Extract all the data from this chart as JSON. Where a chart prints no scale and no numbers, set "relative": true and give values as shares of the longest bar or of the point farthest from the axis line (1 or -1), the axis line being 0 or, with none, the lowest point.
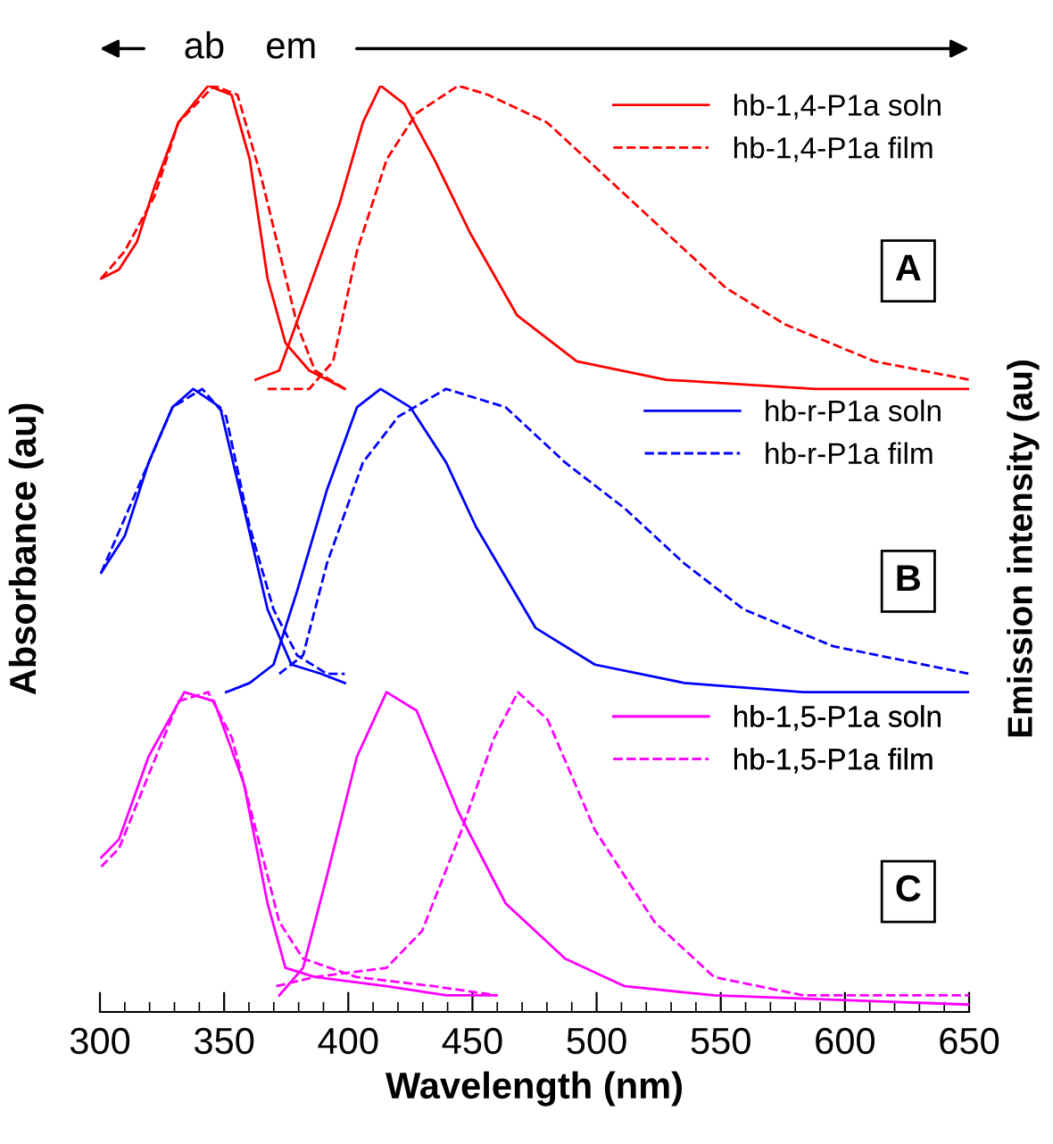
{
  "chart_data": {
    "type": "line",
    "relative": true,
    "xlim": [
      300,
      650
    ],
    "legend": "right",
    "xlabel": "Wavelength (nm)",
    "ylabel": "Absorbance (au)",
    "y2label": "Emission intensity (au)",
    "annotations": [
      "ab",
      "em",
      "A",
      "B",
      "C"
    ],
    "xticks": [
      300,
      {
        "value": 310,
        "label": null
      },
      {
        "value": 320,
        "label": null
      },
      {
        "value": 330,
        "label": null
      },
      {
        "value": 340,
        "label": null
      },
      350,
      {
        "value": 360,
        "label": null
      },
      {
        "value": 370,
        "label": null
      },
      {
        "value": 380,
        "label": null
      },
      {
        "value": 390,
        "label": null
      },
      400,
      {
        "value": 410,
        "label": null
      },
      {
        "value": 420,
        "label": null
      },
      {
        "value": 430,
        "label": null
      },
      {
        "value": 440,
        "label": null
      },
      450,
      {
        "value": 460,
        "label": null
      },
      {
        "value": 470,
        "label": null
      },
      {
        "value": 480,
        "label": null
      },
      {
        "value": 490,
        "label": null
      },
      500,
      {
        "value": 510,
        "label": null
      },
      {
        "value": 520,
        "label": null
      },
      {
        "value": 530,
        "label": null
      },
      {
        "value": 540,
        "label": null
      },
      550,
      {
        "value": 560,
        "label": null
      },
      {
        "value": 570,
        "label": null
      },
      {
        "value": 580,
        "label": null
      },
      {
        "value": 590,
        "label": null
      },
      600,
      {
        "value": 610,
        "label": null
      },
      {
        "value": 620,
        "label": null
      },
      {
        "value": 630,
        "label": null
      },
      {
        "value": 640,
        "label": null
      },
      650
    ],
    "series": [
      {
        "name": "hb-1,4-P1a soln",
        "color": "#ff0000",
        "line_style": "solid",
        "x": [
          362.7,
          372.2,
          384.3,
          396.3,
          405.9,
          413,
          422.6,
          434.6,
          449,
          468,
          492,
          528,
          588,
          650
        ],
        "values": [
          0.68,
          0.69,
          0.78,
          0.87,
          0.96,
          1.0,
          0.98,
          0.92,
          0.84,
          0.75,
          0.7,
          0.68,
          0.67,
          0.67
        ]
      },
      {
        "name": "hb-1,4-P1a film",
        "color": "#ff0000",
        "line_style": "dashed",
        "x": [
          367.5,
          384.3,
          393.9,
          403.5,
          415.5,
          427.5,
          444.3,
          456.3,
          480,
          504,
          528,
          552,
          576,
          612,
          650
        ],
        "values": [
          0.67,
          0.67,
          0.7,
          0.82,
          0.92,
          0.97,
          1.0,
          0.99,
          0.96,
          0.9,
          0.84,
          0.78,
          0.74,
          0.7,
          0.68
        ]
      },
      {
        "color": "#ff0000",
        "line_style": "solid",
        "x": [
          300.5,
          307.7,
          314.9,
          322,
          331.6,
          343.6,
          353,
          360.3,
          367.5,
          374.7,
          384.3,
          398.6
        ],
        "values": [
          0.79,
          0.8,
          0.83,
          0.89,
          0.96,
          1.0,
          0.99,
          0.92,
          0.79,
          0.72,
          0.69,
          0.67
        ]
      },
      {
        "color": "#ff0000",
        "line_style": "dashed",
        "x": [
          300.5,
          310,
          322,
          331.6,
          346,
          355.4,
          365,
          372.2,
          379.4,
          386.6,
          398.6
        ],
        "values": [
          0.79,
          0.82,
          0.88,
          0.96,
          1.0,
          0.99,
          0.9,
          0.82,
          0.74,
          0.69,
          0.67
        ]
      },
      {
        "name": "hb-r-P1a soln",
        "color": "#0000ff",
        "line_style": "solid",
        "x": [
          350.8,
          360.3,
          369.9,
          379.4,
          391.4,
          403.5,
          413,
          425,
          439.4,
          451.4,
          475.4,
          499.3,
          535.3,
          583.2,
          650
        ],
        "values": [
          0.34,
          0.35,
          0.37,
          0.45,
          0.56,
          0.65,
          0.67,
          0.65,
          0.59,
          0.52,
          0.41,
          0.37,
          0.35,
          0.34,
          0.34
        ]
      },
      {
        "name": "hb-r-P1a film",
        "color": "#0000ff",
        "line_style": "dashed",
        "x": [
          372.2,
          381.8,
          391.4,
          405.9,
          420.2,
          439.4,
          463.4,
          487.3,
          511.3,
          535.3,
          559.3,
          595.2,
          650
        ],
        "values": [
          0.36,
          0.38,
          0.48,
          0.59,
          0.64,
          0.67,
          0.65,
          0.59,
          0.54,
          0.48,
          0.43,
          0.39,
          0.36
        ]
      },
      {
        "color": "#0000ff",
        "line_style": "solid",
        "x": [
          300.5,
          310,
          319.6,
          329.2,
          337.6,
          348.4,
          358,
          367.5,
          377.1,
          389,
          398.6
        ],
        "values": [
          0.47,
          0.51,
          0.59,
          0.65,
          0.67,
          0.65,
          0.54,
          0.43,
          0.37,
          0.36,
          0.35
        ]
      },
      {
        "color": "#0000ff",
        "line_style": "dashed",
        "x": [
          300.5,
          314.9,
          329.2,
          341.2,
          350.8,
          360.3,
          369.9,
          379.4,
          391.4,
          398.6
        ],
        "values": [
          0.47,
          0.56,
          0.65,
          0.67,
          0.64,
          0.52,
          0.43,
          0.38,
          0.36,
          0.36
        ]
      },
      {
        "name": "hb-1,5-P1a soln",
        "color": "#ff00ff",
        "line_style": "solid",
        "x": [
          372.2,
          381.8,
          391.4,
          403.5,
          415.4,
          427.5,
          444.3,
          463.4,
          487.3,
          511.3,
          547.3,
          650
        ],
        "values": [
          0.01,
          0.04,
          0.14,
          0.27,
          0.34,
          0.32,
          0.21,
          0.11,
          0.05,
          0.02,
          0.01,
          0.0
        ]
      },
      {
        "name": "hb-1,5-P1a film",
        "color": "#ff00ff",
        "line_style": "dashed",
        "x": [
          371,
          386.6,
          415.4,
          429.7,
          444.3,
          458.7,
          468.3,
          480.3,
          499.3,
          523.3,
          547.3,
          583.2,
          650
        ],
        "values": [
          0.02,
          0.03,
          0.04,
          0.08,
          0.18,
          0.29,
          0.34,
          0.31,
          0.19,
          0.09,
          0.03,
          0.01,
          0.01
        ]
      },
      {
        "color": "#ff00ff",
        "line_style": "solid",
        "x": [
          300.5,
          307.7,
          319.6,
          334,
          346,
          358,
          367.5,
          374.7,
          386.6,
          415.4,
          439.4,
          459.7
        ],
        "values": [
          0.16,
          0.18,
          0.27,
          0.34,
          0.33,
          0.24,
          0.11,
          0.04,
          0.03,
          0.02,
          0.01,
          0.01
        ]
      },
      {
        "color": "#ff00ff",
        "line_style": "dashed",
        "x": [
          300.5,
          307.7,
          319.6,
          331.6,
          343.6,
          353.2,
          362.8,
          372.2,
          381.8,
          403.3,
          434.5,
          459.7
        ],
        "values": [
          0.15,
          0.17,
          0.25,
          0.33,
          0.34,
          0.29,
          0.19,
          0.09,
          0.05,
          0.03,
          0.02,
          0.01
        ]
      }
    ]
  }
}
